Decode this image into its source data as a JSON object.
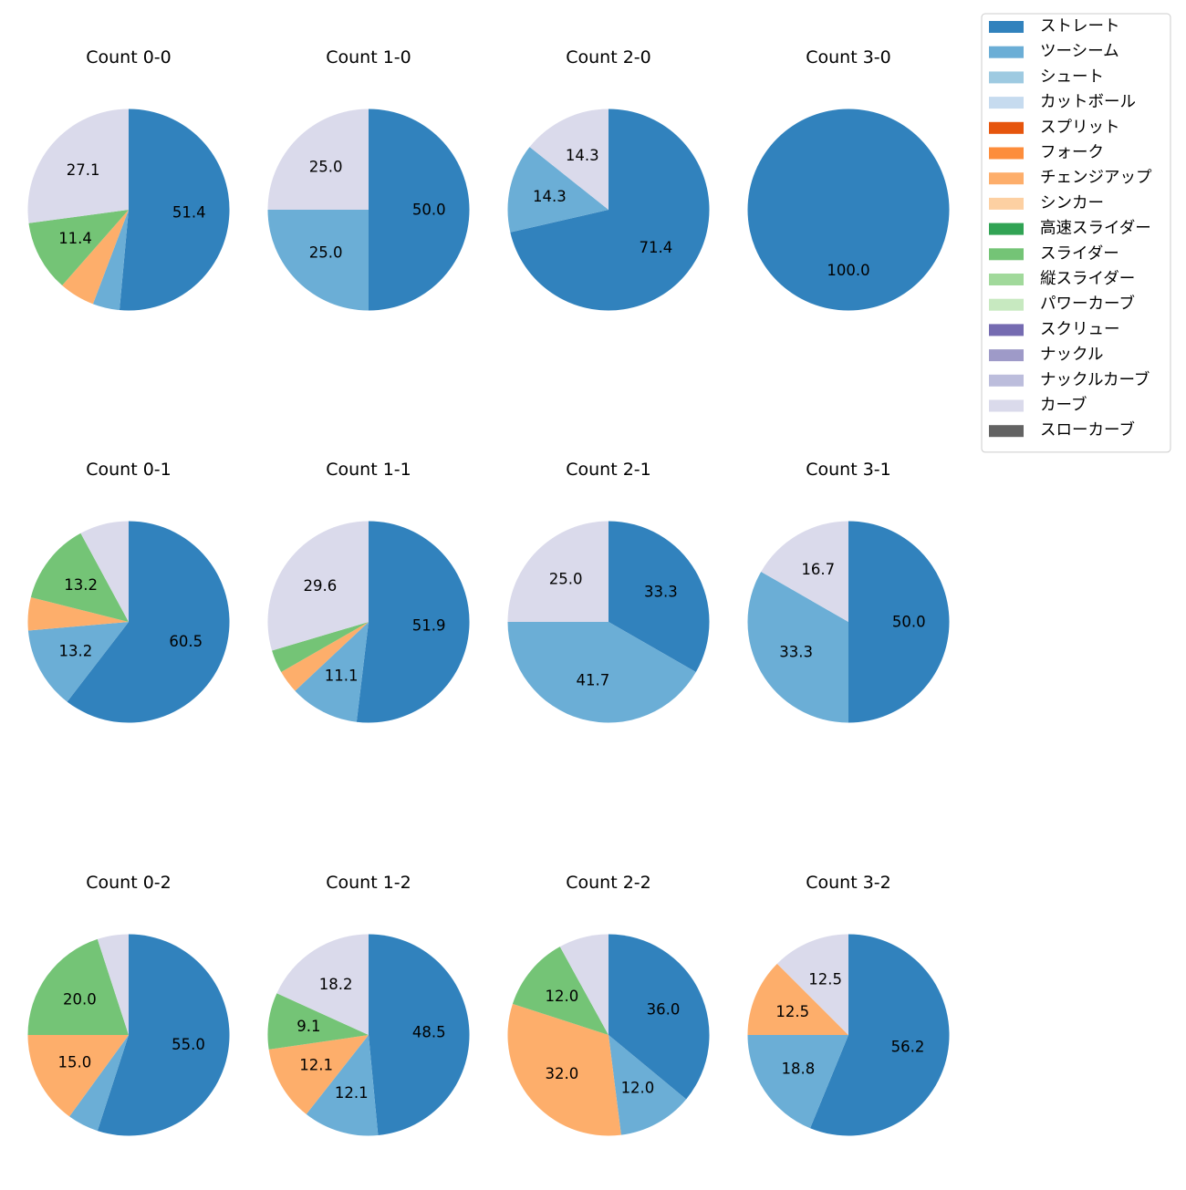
{
  "chart_data": {
    "type": "pie",
    "legend": {
      "position": "top-right",
      "entries": [
        {
          "name": "ストレート",
          "color": "#3182bd"
        },
        {
          "name": "ツーシーム",
          "color": "#6baed6"
        },
        {
          "name": "シュート",
          "color": "#9ecae1"
        },
        {
          "name": "カットボール",
          "color": "#c6dbef"
        },
        {
          "name": "スプリット",
          "color": "#e6550d"
        },
        {
          "name": "フォーク",
          "color": "#fd8d3c"
        },
        {
          "name": "チェンジアップ",
          "color": "#fdae6b"
        },
        {
          "name": "シンカー",
          "color": "#fdd0a2"
        },
        {
          "name": "高速スライダー",
          "color": "#31a354"
        },
        {
          "name": "スライダー",
          "color": "#74c476"
        },
        {
          "name": "縦スライダー",
          "color": "#a1d99b"
        },
        {
          "name": "パワーカーブ",
          "color": "#c7e9c0"
        },
        {
          "name": "スクリュー",
          "color": "#756bb1"
        },
        {
          "name": "ナックル",
          "color": "#9e9ac8"
        },
        {
          "name": "ナックルカーブ",
          "color": "#bcbddc"
        },
        {
          "name": "カーブ",
          "color": "#dadaeb"
        },
        {
          "name": "スローカーブ",
          "color": "#636363"
        }
      ]
    },
    "charts": [
      {
        "title": "Count 0-0",
        "slices": [
          {
            "name": "ストレート",
            "value": 51.4,
            "label": "51.4"
          },
          {
            "name": "ツーシーム",
            "value": 4.3,
            "label": ""
          },
          {
            "name": "チェンジアップ",
            "value": 5.7,
            "label": ""
          },
          {
            "name": "スライダー",
            "value": 11.4,
            "label": "11.4"
          },
          {
            "name": "カーブ",
            "value": 27.1,
            "label": "27.1"
          }
        ]
      },
      {
        "title": "Count 1-0",
        "slices": [
          {
            "name": "ストレート",
            "value": 50.0,
            "label": "50.0"
          },
          {
            "name": "ツーシーム",
            "value": 25.0,
            "label": "25.0"
          },
          {
            "name": "カーブ",
            "value": 25.0,
            "label": "25.0"
          }
        ]
      },
      {
        "title": "Count 2-0",
        "slices": [
          {
            "name": "ストレート",
            "value": 71.4,
            "label": "71.4"
          },
          {
            "name": "ツーシーム",
            "value": 14.3,
            "label": "14.3"
          },
          {
            "name": "カーブ",
            "value": 14.3,
            "label": "14.3"
          }
        ]
      },
      {
        "title": "Count 3-0",
        "slices": [
          {
            "name": "ストレート",
            "value": 100.0,
            "label": "100.0"
          }
        ]
      },
      {
        "title": "Count 0-1",
        "slices": [
          {
            "name": "ストレート",
            "value": 60.5,
            "label": "60.5"
          },
          {
            "name": "ツーシーム",
            "value": 13.2,
            "label": "13.2"
          },
          {
            "name": "チェンジアップ",
            "value": 5.3,
            "label": ""
          },
          {
            "name": "スライダー",
            "value": 13.2,
            "label": "13.2"
          },
          {
            "name": "カーブ",
            "value": 7.9,
            "label": ""
          }
        ]
      },
      {
        "title": "Count 1-1",
        "slices": [
          {
            "name": "ストレート",
            "value": 51.9,
            "label": "51.9"
          },
          {
            "name": "ツーシーム",
            "value": 11.1,
            "label": "11.1"
          },
          {
            "name": "チェンジアップ",
            "value": 3.7,
            "label": ""
          },
          {
            "name": "スライダー",
            "value": 3.7,
            "label": ""
          },
          {
            "name": "カーブ",
            "value": 29.6,
            "label": "29.6"
          }
        ]
      },
      {
        "title": "Count 2-1",
        "slices": [
          {
            "name": "ストレート",
            "value": 33.3,
            "label": "33.3"
          },
          {
            "name": "ツーシーム",
            "value": 41.7,
            "label": "41.7"
          },
          {
            "name": "カーブ",
            "value": 25.0,
            "label": "25.0"
          }
        ]
      },
      {
        "title": "Count 3-1",
        "slices": [
          {
            "name": "ストレート",
            "value": 50.0,
            "label": "50.0"
          },
          {
            "name": "ツーシーム",
            "value": 33.3,
            "label": "33.3"
          },
          {
            "name": "カーブ",
            "value": 16.7,
            "label": "16.7"
          }
        ]
      },
      {
        "title": "Count 0-2",
        "slices": [
          {
            "name": "ストレート",
            "value": 55.0,
            "label": "55.0"
          },
          {
            "name": "ツーシーム",
            "value": 5.0,
            "label": ""
          },
          {
            "name": "チェンジアップ",
            "value": 15.0,
            "label": "15.0"
          },
          {
            "name": "スライダー",
            "value": 20.0,
            "label": "20.0"
          },
          {
            "name": "カーブ",
            "value": 5.0,
            "label": ""
          }
        ]
      },
      {
        "title": "Count 1-2",
        "slices": [
          {
            "name": "ストレート",
            "value": 48.5,
            "label": "48.5"
          },
          {
            "name": "ツーシーム",
            "value": 12.1,
            "label": "12.1"
          },
          {
            "name": "チェンジアップ",
            "value": 12.1,
            "label": "12.1"
          },
          {
            "name": "スライダー",
            "value": 9.1,
            "label": "9.1"
          },
          {
            "name": "カーブ",
            "value": 18.2,
            "label": "18.2"
          }
        ]
      },
      {
        "title": "Count 2-2",
        "slices": [
          {
            "name": "ストレート",
            "value": 36.0,
            "label": "36.0"
          },
          {
            "name": "ツーシーム",
            "value": 12.0,
            "label": "12.0"
          },
          {
            "name": "チェンジアップ",
            "value": 32.0,
            "label": "32.0"
          },
          {
            "name": "スライダー",
            "value": 12.0,
            "label": "12.0"
          },
          {
            "name": "カーブ",
            "value": 8.0,
            "label": ""
          }
        ]
      },
      {
        "title": "Count 3-2",
        "slices": [
          {
            "name": "ストレート",
            "value": 56.2,
            "label": "56.2"
          },
          {
            "name": "ツーシーム",
            "value": 18.8,
            "label": "18.8"
          },
          {
            "name": "チェンジアップ",
            "value": 12.5,
            "label": "12.5"
          },
          {
            "name": "カーブ",
            "value": 12.5,
            "label": "12.5"
          }
        ]
      }
    ]
  }
}
